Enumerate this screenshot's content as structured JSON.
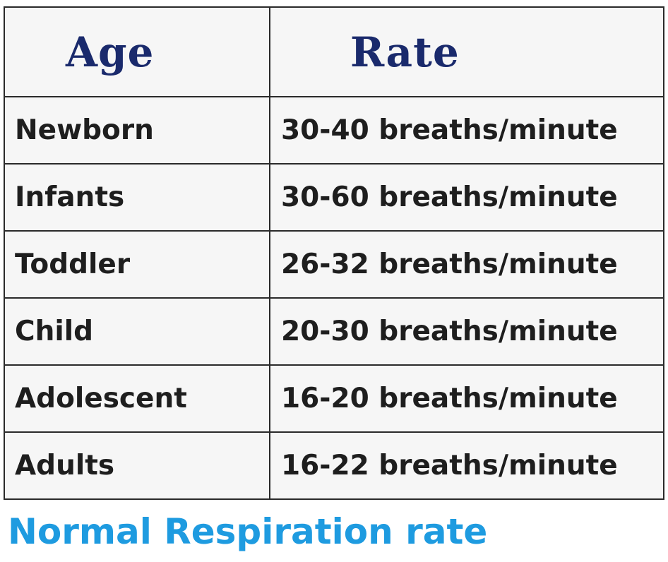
{
  "table": {
    "headers": {
      "age": "Age",
      "rate": "Rate"
    },
    "rows": [
      {
        "age": "Newborn",
        "rate": "30-40 breaths/minute"
      },
      {
        "age": "Infants",
        "rate": "30-60 breaths/minute"
      },
      {
        "age": "Toddler",
        "rate": "26-32 breaths/minute"
      },
      {
        "age": "Child",
        "rate": "20-30 breaths/minute"
      },
      {
        "age": "Adolescent",
        "rate": "16-20 breaths/minute"
      },
      {
        "age": "Adults",
        "rate": "16-22 breaths/minute"
      }
    ]
  },
  "caption": "Normal Respiration rate",
  "colors": {
    "header_text": "#1a2a6c",
    "caption_text": "#1e9be0",
    "body_text": "#1e1e1e"
  }
}
